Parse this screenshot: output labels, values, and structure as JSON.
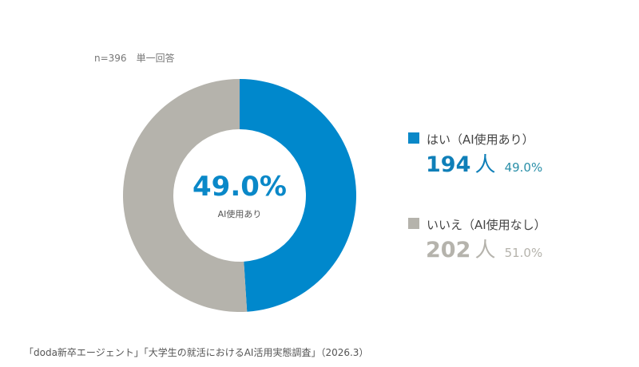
{
  "note": "n=396　単一回答",
  "colors": {
    "yes": "#0088cc",
    "no": "#b5b3ac"
  },
  "chart_data": {
    "type": "pie",
    "donut": true,
    "categories": [
      "はい（AI使用あり）",
      "いいえ（AI使用なし）"
    ],
    "values": [
      194,
      202
    ],
    "percents": [
      "49.0%",
      "51.0%"
    ],
    "center_value": "49.0%",
    "center_label": "AI使用あり",
    "legend_placement": "right"
  },
  "legend": [
    {
      "label": "はい（AI使用あり）",
      "count": "194",
      "unit": "人",
      "pct": "49.0%"
    },
    {
      "label": "いいえ（AI使用なし）",
      "count": "202",
      "unit": "人",
      "pct": "51.0%"
    }
  ],
  "source": "「doda新卒エージェント」「大学生の就活におけるAI活用実態調査」（2026.3）"
}
